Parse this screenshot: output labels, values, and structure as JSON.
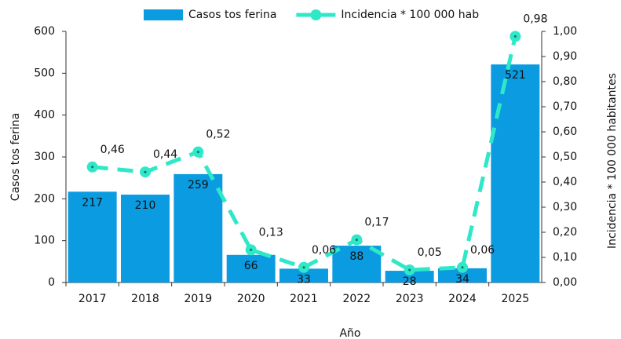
{
  "chart_data": {
    "type": "bar",
    "x_label": "Año",
    "y_label": "Casos tos ferina",
    "y2_label": "Incidencia * 100 000 habitantes",
    "categories": [
      "2017",
      "2018",
      "2019",
      "2020",
      "2021",
      "2022",
      "2023",
      "2024",
      "2025"
    ],
    "series": [
      {
        "name": "Casos tos ferina",
        "type": "bar",
        "color": "#0b9be0",
        "values": [
          217,
          210,
          259,
          66,
          33,
          88,
          28,
          34,
          521
        ]
      },
      {
        "name": "Incidencia * 100 000 hab",
        "type": "line",
        "axis": "y2",
        "color": "#2ee8c8",
        "values": [
          0.46,
          0.44,
          0.52,
          0.13,
          0.06,
          0.17,
          0.05,
          0.06,
          0.98
        ],
        "value_labels": [
          "0,46",
          "0,44",
          "0,52",
          "0,13",
          "0,06",
          "0,17",
          "0,05",
          "0,06",
          "0,98"
        ]
      }
    ],
    "ylim": [
      0,
      600
    ],
    "yticks": [
      0,
      100,
      200,
      300,
      400,
      500,
      600
    ],
    "y2lim": [
      0,
      1
    ],
    "y2ticks": [
      {
        "value": 0,
        "label": "0,00"
      },
      {
        "value": 0.1,
        "label": "0,10"
      },
      {
        "value": 0.2,
        "label": "0,20"
      },
      {
        "value": 0.3,
        "label": "0,30"
      },
      {
        "value": 0.4,
        "label": "0,40"
      },
      {
        "value": 0.5,
        "label": "0,50"
      },
      {
        "value": 0.6,
        "label": "0,60"
      },
      {
        "value": 0.7,
        "label": "0,70"
      },
      {
        "value": 0.8,
        "label": "0,80"
      },
      {
        "value": 0.9,
        "label": "0,90"
      },
      {
        "value": 1,
        "label": "1,00"
      }
    ],
    "legend": "top",
    "grid": false
  }
}
